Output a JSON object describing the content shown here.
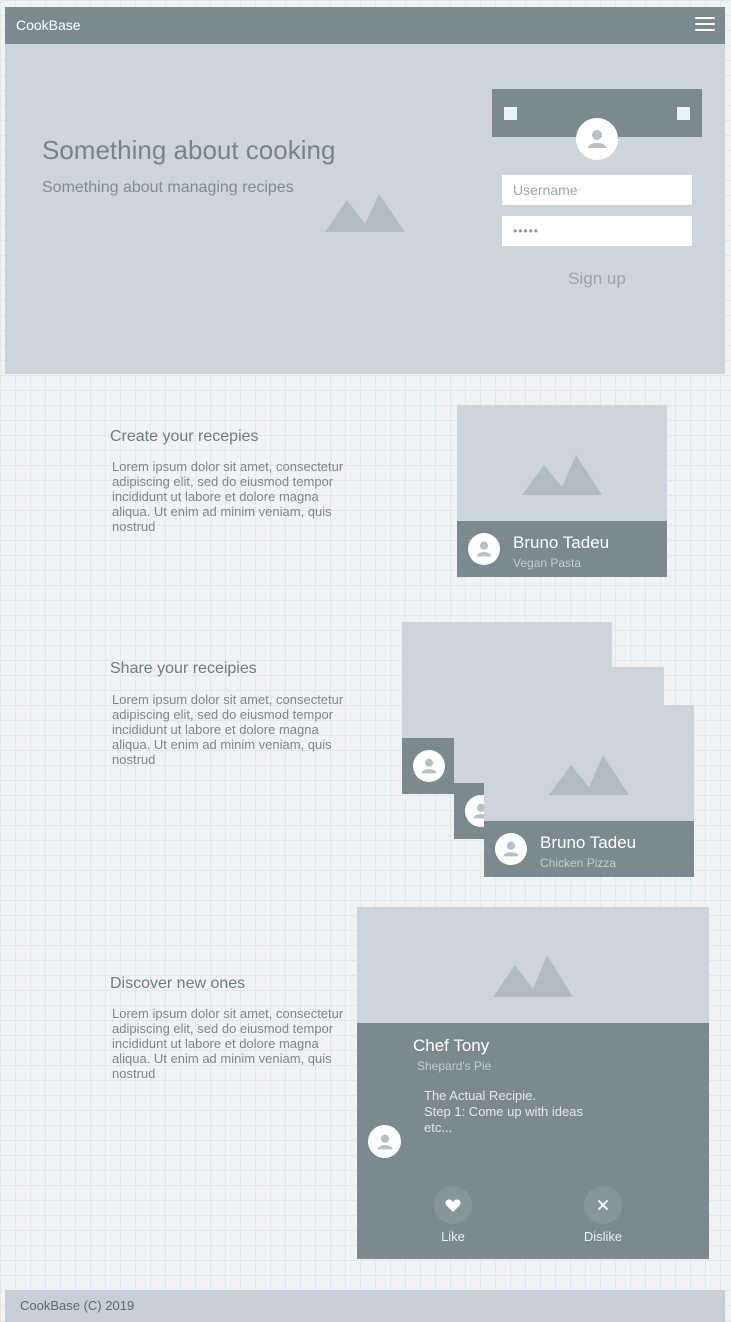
{
  "header": {
    "brand": "CookBase",
    "menu_icon": "hamburger-menu-icon"
  },
  "hero": {
    "title": "Something about cooking",
    "subtitle": "Something about managing recipes",
    "image_icon": "mountain-image-icon"
  },
  "login": {
    "avatar_icon": "user-avatar-icon",
    "username_placeholder": "Username",
    "password_value": "•••••",
    "signup_label": "Sign up"
  },
  "sections": [
    {
      "title": "Create your recepies",
      "body": "Lorem ipsum dolor sit amet, consectetur adipiscing elit, sed do eiusmod tempor incididunt ut labore et dolore magna aliqua. Ut enim ad minim veniam, quis nostrud",
      "card": {
        "name": "Bruno Tadeu",
        "recipe": "Vegan Pasta"
      }
    },
    {
      "title": "Share your receipies",
      "body": "Lorem ipsum dolor sit amet, consectetur adipiscing elit, sed do eiusmod tempor incididunt ut labore et dolore magna aliqua. Ut enim ad minim veniam, quis nostrud",
      "card": {
        "name": "Bruno Tadeu",
        "recipe": "Chicken Pizza"
      }
    },
    {
      "title": "Discover new ones",
      "body": "Lorem ipsum dolor sit amet, consectetur adipiscing elit, sed do eiusmod tempor incididunt ut labore et dolore magna aliqua. Ut enim ad minim veniam, quis nostrud",
      "card": {
        "name": "Chef Tony",
        "recipe": "Shepard's Pie",
        "details": [
          "The Actual Recipie.",
          "Step 1: Come up with ideas",
          "etc..."
        ],
        "like_label": "Like",
        "dislike_label": "Dislike",
        "like_icon": "heart-icon",
        "dislike_icon": "close-icon"
      }
    }
  ],
  "footer": {
    "text": "CookBase (C) 2019"
  },
  "colors": {
    "dark": "#7a8a8e",
    "light": "#cdd5da",
    "footer": "#c5cfd5"
  }
}
